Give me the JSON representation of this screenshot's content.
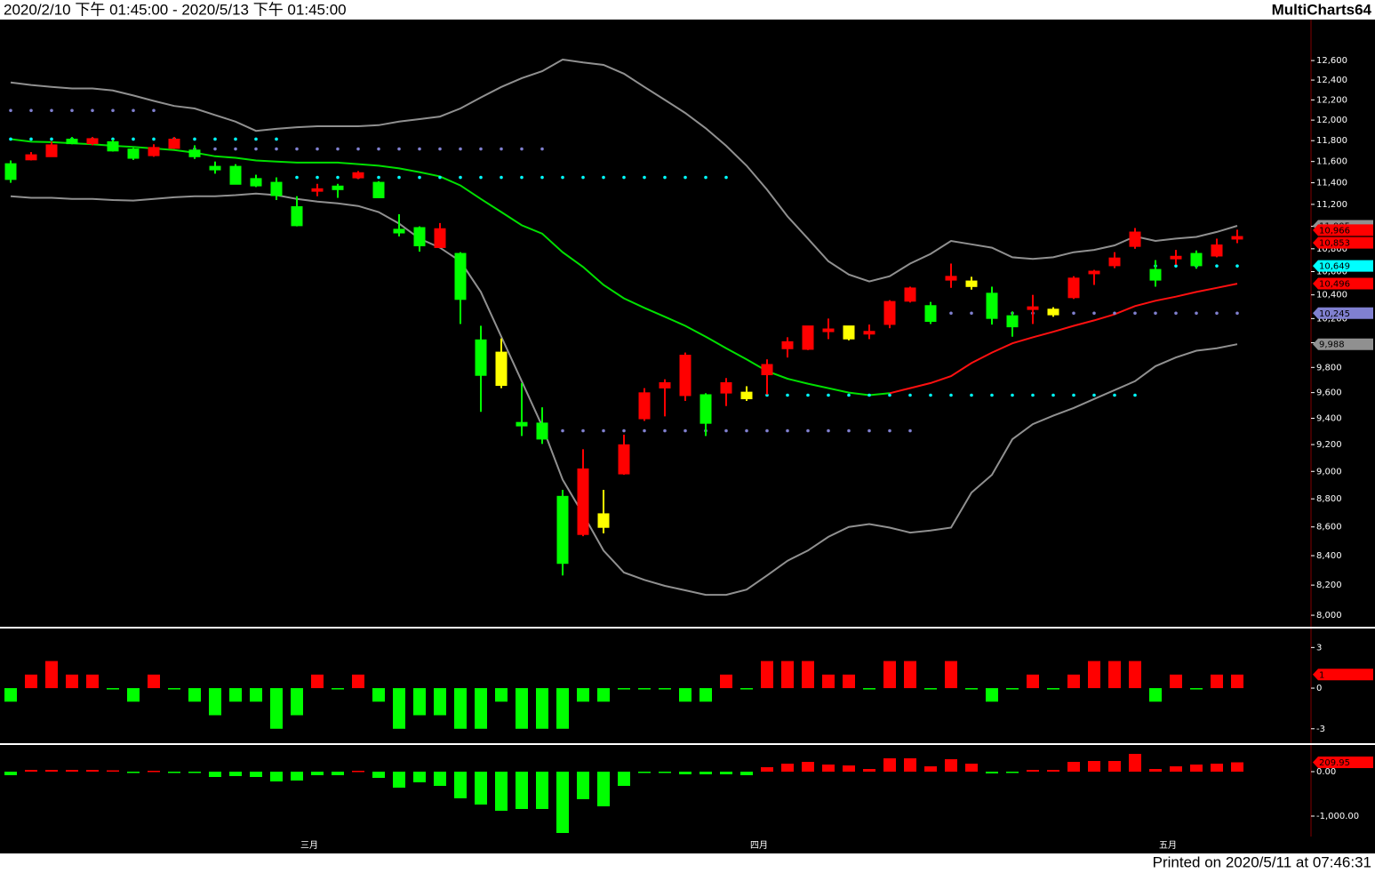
{
  "header": {
    "range": "2020/2/10 下午 01:45:00 - 2020/5/13 下午 01:45:00",
    "app": "MultiCharts64"
  },
  "footer": "Printed on 2020/5/11 at 07:46:31",
  "chart_data": [
    {
      "type": "candlestick",
      "log_scale": true,
      "ylim": [
        7925,
        13030
      ],
      "yticks": [
        {
          "value": 8000,
          "label": "8,000"
        },
        {
          "value": 8200,
          "label": "8,200"
        },
        {
          "value": 8400,
          "label": "8,400"
        },
        {
          "value": 8600,
          "label": "8,600"
        },
        {
          "value": 8800,
          "label": "8,800"
        },
        {
          "value": 9000,
          "label": "9,000"
        },
        {
          "value": 9200,
          "label": "9,200"
        },
        {
          "value": 9400,
          "label": "9,400"
        },
        {
          "value": 9600,
          "label": "9,600"
        },
        {
          "value": 9800,
          "label": "9,800"
        },
        {
          "value": 10000,
          "label": "10,000"
        },
        {
          "value": 10200,
          "label": "10,200"
        },
        {
          "value": 10400,
          "label": "10,400"
        },
        {
          "value": 10600,
          "label": "10,600"
        },
        {
          "value": 10800,
          "label": "10,800"
        },
        {
          "value": 11000,
          "label": "11,000"
        },
        {
          "value": 11200,
          "label": "11,200"
        },
        {
          "value": 11400,
          "label": "11,400"
        },
        {
          "value": 11600,
          "label": "11,600"
        },
        {
          "value": 11800,
          "label": "11,800"
        },
        {
          "value": 12000,
          "label": "12,000"
        },
        {
          "value": 12200,
          "label": "12,200"
        },
        {
          "value": 12400,
          "label": "12,400"
        },
        {
          "value": 12600,
          "label": "12,600"
        }
      ],
      "categories": [
        null,
        null,
        null,
        null,
        null,
        null,
        null,
        null,
        null,
        null,
        null,
        null,
        null,
        null,
        null,
        "三月",
        null,
        null,
        null,
        null,
        null,
        null,
        null,
        null,
        null,
        null,
        null,
        null,
        null,
        null,
        null,
        null,
        null,
        null,
        null,
        null,
        null,
        "四月",
        null,
        null,
        null,
        null,
        null,
        null,
        null,
        null,
        null,
        null,
        null,
        null,
        null,
        null,
        null,
        null,
        null,
        null,
        null,
        "五月",
        null,
        null,
        null
      ],
      "open": [
        11575,
        11620,
        11650,
        11810,
        11775,
        11785,
        11715,
        11660,
        11730,
        11705,
        11550,
        11550,
        11435,
        11400,
        11175,
        11325,
        11365,
        11450,
        11400,
        10970,
        10985,
        10815,
        10755,
        10020,
        9920,
        9365,
        9360,
        8815,
        8550,
        8690,
        8985,
        9400,
        9640,
        9580,
        9580,
        9600,
        9600,
        9745,
        9955,
        9950,
        10095,
        10135,
        10075,
        10155,
        10350,
        10305,
        10530,
        10515,
        10410,
        10220,
        10280,
        10275,
        10380,
        10585,
        10655,
        10825,
        10615,
        10715,
        10755,
        10740,
        10890
      ],
      "high": [
        11610,
        11690,
        11790,
        11835,
        11835,
        11810,
        11730,
        11765,
        11835,
        11755,
        11600,
        11575,
        11475,
        11450,
        11275,
        11390,
        11390,
        11510,
        11415,
        11110,
        11000,
        11030,
        10770,
        10140,
        10035,
        9675,
        9485,
        8865,
        9165,
        8865,
        9275,
        9635,
        9705,
        9920,
        9595,
        9715,
        9650,
        9865,
        10045,
        10140,
        10200,
        10140,
        10150,
        10355,
        10470,
        10340,
        10670,
        10555,
        10470,
        10260,
        10400,
        10295,
        10560,
        10615,
        10770,
        10985,
        10700,
        10790,
        10785,
        10890,
        10970
      ],
      "low": [
        11400,
        11610,
        11645,
        11765,
        11755,
        11695,
        11615,
        11645,
        11720,
        11625,
        11485,
        11385,
        11360,
        11240,
        11000,
        11275,
        11260,
        11435,
        11260,
        10910,
        10775,
        10810,
        10155,
        9450,
        9635,
        9265,
        9205,
        8265,
        8535,
        8555,
        8975,
        9380,
        9415,
        9535,
        9265,
        9495,
        9535,
        9585,
        9880,
        9940,
        10030,
        10020,
        10030,
        10120,
        10335,
        10155,
        10460,
        10445,
        10150,
        10050,
        10155,
        10215,
        10365,
        10485,
        10630,
        10800,
        10470,
        10660,
        10625,
        10725,
        10850
      ],
      "close": [
        11435,
        11660,
        11755,
        11775,
        11815,
        11705,
        11635,
        11730,
        11810,
        11650,
        11525,
        11390,
        11375,
        11285,
        11010,
        11340,
        11340,
        11490,
        11265,
        10945,
        10830,
        10975,
        10365,
        9740,
        9660,
        9345,
        9245,
        8350,
        9015,
        8600,
        9195,
        9595,
        9675,
        9895,
        9365,
        9675,
        9555,
        9820,
        10005,
        10135,
        10110,
        10035,
        10090,
        10340,
        10455,
        10180,
        10555,
        10475,
        10205,
        10135,
        10295,
        10235,
        10540,
        10600,
        10715,
        10945,
        10530,
        10730,
        10655,
        10830,
        10905
      ],
      "candle_colors": [
        "#00ff00",
        "#ff0000",
        "#ff0000",
        "#00ff00",
        "#ff0000",
        "#00ff00",
        "#00ff00",
        "#ff0000",
        "#ff0000",
        "#00ff00",
        "#00ff00",
        "#00ff00",
        "#00ff00",
        "#00ff00",
        "#00ff00",
        "#ff0000",
        "#00ff00",
        "#ff0000",
        "#00ff00",
        "#00ff00",
        "#00ff00",
        "#ff0000",
        "#00ff00",
        "#00ff00",
        "#ffff00",
        "#00ff00",
        "#00ff00",
        "#00ff00",
        "#ff0000",
        "#ffff00",
        "#ff0000",
        "#ff0000",
        "#ff0000",
        "#ff0000",
        "#00ff00",
        "#ff0000",
        "#ffff00",
        "#ff0000",
        "#ff0000",
        "#ff0000",
        "#ff0000",
        "#ffff00",
        "#ff0000",
        "#ff0000",
        "#ff0000",
        "#00ff00",
        "#ff0000",
        "#ffff00",
        "#00ff00",
        "#00ff00",
        "#ff0000",
        "#ffff00",
        "#ff0000",
        "#ff0000",
        "#ff0000",
        "#ff0000",
        "#00ff00",
        "#ff0000",
        "#00ff00",
        "#ff0000",
        "#ff0000"
      ],
      "lines": [
        {
          "color": "#909090",
          "values": [
            12375,
            12350,
            12330,
            12315,
            12315,
            12295,
            12245,
            12190,
            12140,
            12115,
            12050,
            11985,
            11895,
            11915,
            11930,
            11940,
            11940,
            11940,
            11950,
            11985,
            12010,
            12035,
            12115,
            12225,
            12330,
            12420,
            12490,
            12610,
            12580,
            12555,
            12465,
            12330,
            12200,
            12070,
            11920,
            11750,
            11560,
            11335,
            11090,
            10890,
            10690,
            10575,
            10515,
            10560,
            10670,
            10755,
            10870,
            10840,
            10810,
            10725,
            10710,
            10725,
            10770,
            10790,
            10830,
            10910,
            10870,
            10890,
            10905,
            10950,
            11005
          ]
        },
        {
          "color": "#909090",
          "values": [
            11275,
            11260,
            11260,
            11250,
            11250,
            11240,
            11235,
            11250,
            11265,
            11275,
            11275,
            11285,
            11300,
            11285,
            11250,
            11225,
            11210,
            11185,
            11130,
            11025,
            10890,
            10810,
            10690,
            10425,
            10050,
            9690,
            9340,
            8940,
            8690,
            8435,
            8285,
            8235,
            8195,
            8165,
            8135,
            8135,
            8170,
            8265,
            8365,
            8435,
            8530,
            8600,
            8620,
            8595,
            8560,
            8575,
            8595,
            8845,
            8975,
            9240,
            9355,
            9420,
            9480,
            9550,
            9620,
            9690,
            9810,
            9880,
            9935,
            9955,
            9988
          ]
        },
        {
          "color": "#00e000",
          "values": [
            11815,
            11790,
            11785,
            11775,
            11765,
            11750,
            11740,
            11725,
            11710,
            11685,
            11650,
            11635,
            11610,
            11600,
            11590,
            11590,
            11590,
            11575,
            11560,
            11535,
            11500,
            11460,
            11375,
            11250,
            11130,
            11010,
            10935,
            10770,
            10640,
            10485,
            10370,
            10290,
            10215,
            10140,
            10050,
            9955,
            9865,
            9770,
            9710,
            9670,
            9635,
            9600,
            9580,
            9595,
            null,
            null,
            null,
            null,
            null,
            null,
            null,
            null,
            null,
            null,
            null,
            null,
            null,
            null,
            null,
            null,
            null
          ]
        },
        {
          "color": "#ff1010",
          "values": [
            null,
            null,
            null,
            null,
            null,
            null,
            null,
            null,
            null,
            null,
            null,
            null,
            null,
            null,
            null,
            null,
            null,
            null,
            null,
            null,
            null,
            null,
            null,
            null,
            null,
            null,
            null,
            null,
            null,
            null,
            null,
            null,
            null,
            null,
            null,
            null,
            null,
            null,
            null,
            null,
            null,
            null,
            null,
            9595,
            9635,
            9675,
            9730,
            9835,
            9920,
            9995,
            10045,
            10090,
            10140,
            10185,
            10235,
            10305,
            10350,
            10385,
            10425,
            10460,
            10496
          ]
        }
      ],
      "dots": [
        {
          "color": "#8080d0",
          "values": [
            12095,
            12095,
            12095,
            12095,
            12095,
            12095,
            12095,
            12095,
            null,
            11720,
            11720,
            11720,
            11720,
            11720,
            11720,
            11720,
            11720,
            11720,
            11720,
            11720,
            11720,
            11720,
            11720,
            11720,
            11720,
            11720,
            11720,
            9305,
            9305,
            9305,
            9305,
            9305,
            9305,
            9305,
            9305,
            9305,
            9305,
            9305,
            9305,
            9305,
            9305,
            9305,
            9305,
            9305,
            9305,
            null,
            10245,
            10245,
            10245,
            10245,
            10245,
            10245,
            10245,
            10245,
            10245,
            10245,
            10245,
            10245,
            10245,
            10245,
            10245
          ]
        },
        {
          "color": "#00ffff",
          "values": [
            11815,
            11815,
            11815,
            11815,
            11815,
            11815,
            11815,
            11815,
            11815,
            11815,
            11815,
            11815,
            11815,
            11815,
            11450,
            11450,
            11450,
            11450,
            11450,
            11450,
            11450,
            11450,
            11450,
            11450,
            11450,
            11450,
            11450,
            11450,
            11450,
            11450,
            11450,
            11450,
            11450,
            11450,
            11450,
            11450,
            9580,
            9580,
            9580,
            9580,
            9580,
            9580,
            9580,
            9580,
            9580,
            9580,
            9580,
            9580,
            9580,
            9580,
            9580,
            9580,
            9580,
            9580,
            9580,
            9580,
            10649,
            10649,
            10649,
            10649,
            10649
          ]
        }
      ],
      "markers": [
        {
          "value": 11005,
          "label": "11,005",
          "color": "#909090"
        },
        {
          "value": 10966,
          "label": "10,966",
          "color": "#ff0000"
        },
        {
          "value": 10853,
          "label": "10,853",
          "color": "#ff0000"
        },
        {
          "value": 10649,
          "label": "10,649",
          "color": "#00ffff"
        },
        {
          "value": 10496,
          "label": "10,496",
          "color": "#ff0000"
        },
        {
          "value": 10245,
          "label": "10,245",
          "color": "#8080d0"
        },
        {
          "value": 9988,
          "label": "9,988",
          "color": "#909090"
        }
      ]
    },
    {
      "type": "bar",
      "ylim": [
        -4,
        4.4
      ],
      "yticks": [
        3,
        0,
        -3
      ],
      "up_color": "#ff0000",
      "down_color": "#00ff00",
      "values": [
        -1,
        1,
        2,
        1,
        1,
        0,
        -1,
        1,
        0,
        -1,
        -2,
        -1,
        -1,
        -3,
        -2,
        1,
        0,
        1,
        -1,
        -3,
        -2,
        -2,
        -3,
        -3,
        -1,
        -3,
        -3,
        -3,
        -1,
        -1,
        0,
        0,
        0,
        -1,
        -1,
        1,
        0,
        2,
        2,
        2,
        1,
        1,
        0,
        2,
        2,
        0,
        2,
        0,
        -1,
        0,
        1,
        0,
        1,
        2,
        2,
        2,
        -1,
        1,
        0,
        1,
        1
      ],
      "markers": [
        {
          "value": 1,
          "color": "#ff0000"
        }
      ]
    },
    {
      "type": "bar",
      "ylim": [
        -1440,
        600
      ],
      "yticks": [
        {
          "value": 0,
          "label": "0.00"
        },
        {
          "value": -1000,
          "label": "-1,000.00"
        }
      ],
      "up_color": "#ff0000",
      "down_color": "#00ff00",
      "values": [
        -80,
        40,
        40,
        40,
        40,
        30,
        -30,
        20,
        0,
        -30,
        -120,
        -100,
        -120,
        -220,
        -200,
        -80,
        -80,
        20,
        -140,
        -360,
        -240,
        -320,
        -600,
        -740,
        -880,
        -840,
        -840,
        -1380,
        -620,
        -780,
        -320,
        0,
        0,
        -60,
        -60,
        -60,
        -80,
        100,
        180,
        220,
        160,
        140,
        60,
        300,
        300,
        120,
        280,
        180,
        -40,
        0,
        40,
        40,
        220,
        240,
        240,
        400,
        60,
        120,
        160,
        180,
        209.95
      ],
      "markers": [
        {
          "value": 209.95,
          "color": "#ff0000"
        }
      ]
    }
  ]
}
